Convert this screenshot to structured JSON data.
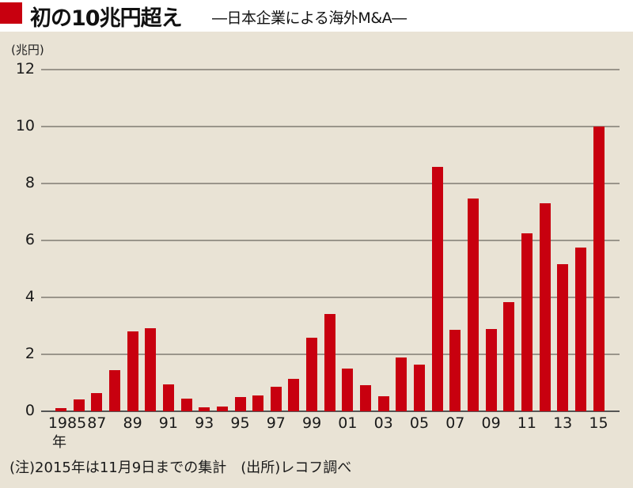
{
  "header": {
    "title": "初の10兆円超え",
    "subtitle": "―日本企業による海外M&A―",
    "accent_color": "#c8000f"
  },
  "axis": {
    "unit_label": "(兆円)",
    "x_unit_label": "年"
  },
  "footnote": "(注)2015年は11月9日までの集計　(出所)レコフ調べ",
  "chart_data": {
    "type": "bar",
    "title": "初の10兆円超え―日本企業による海外M&A―",
    "xlabel": "年",
    "ylabel": "兆円",
    "ylim": [
      0,
      12
    ],
    "yticks": [
      0,
      2,
      4,
      6,
      8,
      10,
      12
    ],
    "grid": true,
    "bar_color": "#c8000f",
    "categories": [
      "1985",
      "1986",
      "1987",
      "1988",
      "1989",
      "1990",
      "1991",
      "1992",
      "1993",
      "1994",
      "1995",
      "1996",
      "1997",
      "1998",
      "1999",
      "2000",
      "2001",
      "2002",
      "2003",
      "2004",
      "2005",
      "2006",
      "2007",
      "2008",
      "2009",
      "2010",
      "2011",
      "2012",
      "2013",
      "2014",
      "2015"
    ],
    "tick_labels": [
      "1985",
      "87",
      "89",
      "91",
      "93",
      "95",
      "97",
      "99",
      "01",
      "03",
      "05",
      "07",
      "09",
      "11",
      "13",
      "15"
    ],
    "values": [
      0.12,
      0.42,
      0.63,
      1.45,
      2.8,
      2.92,
      0.94,
      0.44,
      0.14,
      0.18,
      0.49,
      0.56,
      0.85,
      1.15,
      2.58,
      3.43,
      1.49,
      0.93,
      0.53,
      1.88,
      1.64,
      8.58,
      2.85,
      7.48,
      2.89,
      3.84,
      6.25,
      7.31,
      5.17,
      5.76,
      10.0
    ],
    "note": "(注)2015年は11月9日までの集計",
    "source": "(出所)レコフ調べ"
  }
}
